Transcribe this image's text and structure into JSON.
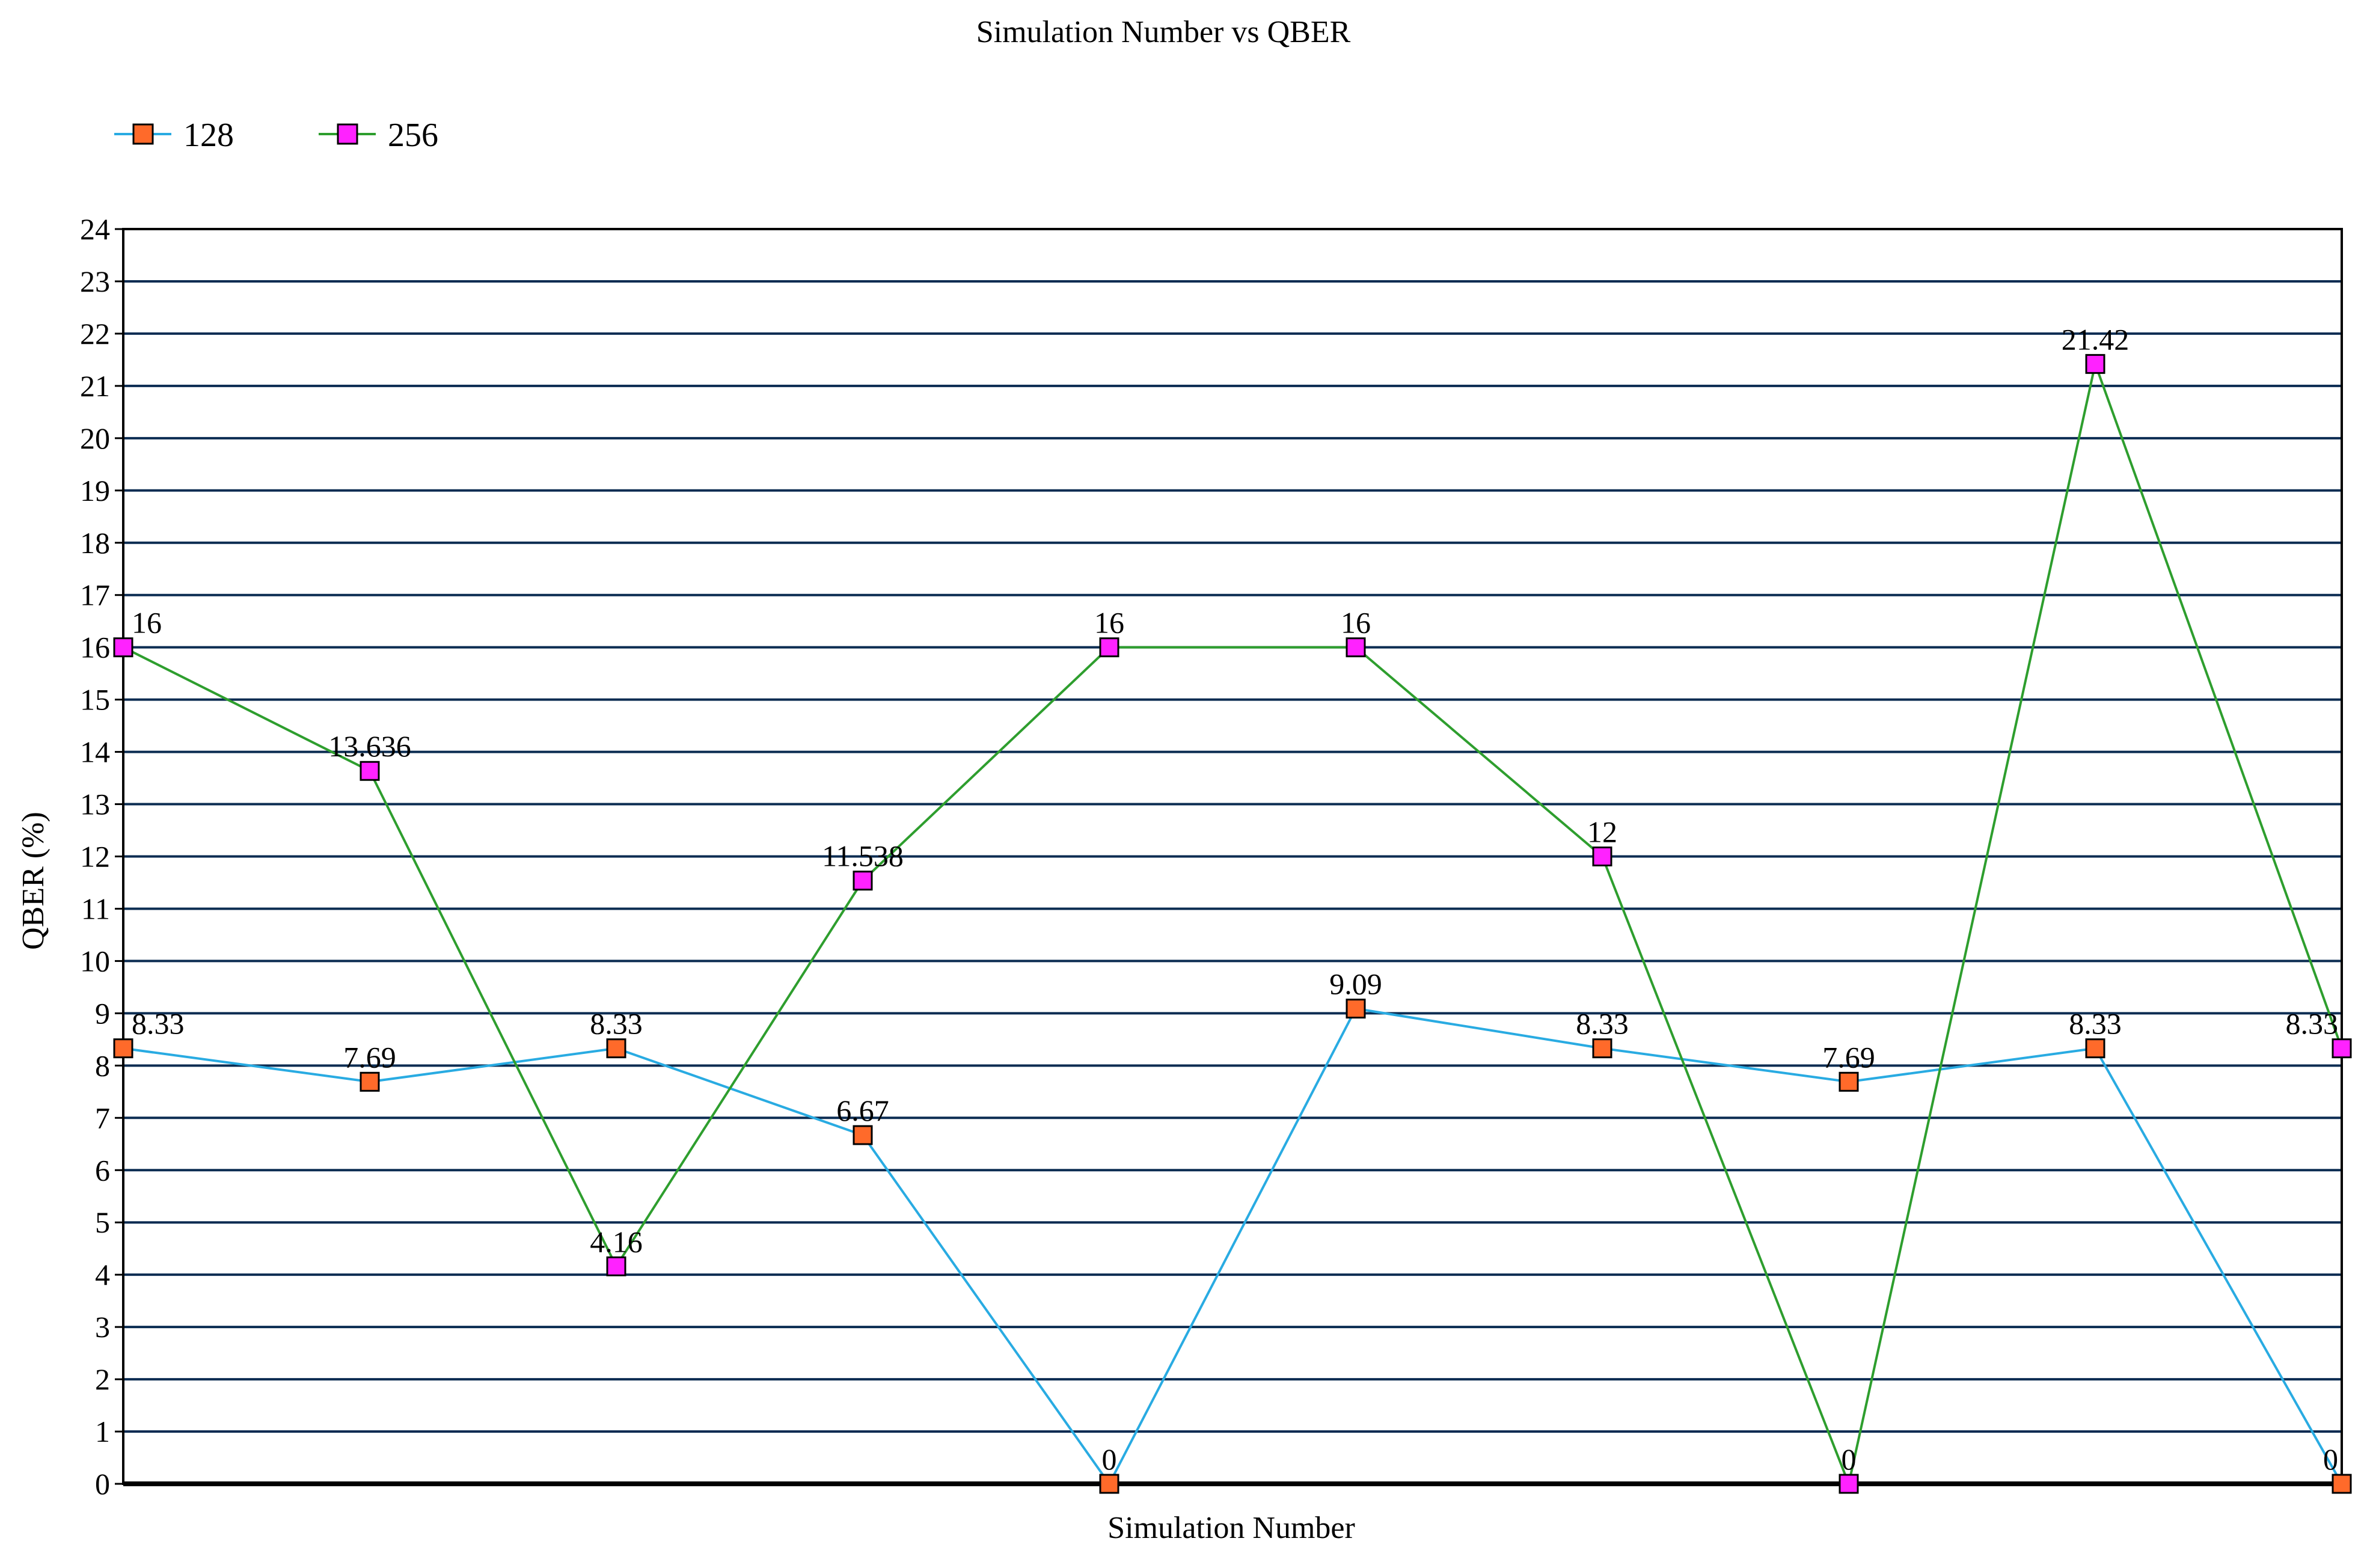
{
  "chart_data": {
    "type": "line",
    "title": "Simulation Number vs QBER",
    "xlabel": "Simulation Number",
    "ylabel": "QBER (%)",
    "ylim": [
      0,
      24
    ],
    "y_ticks": [
      "0",
      "1",
      "2",
      "3",
      "4",
      "5",
      "6",
      "7",
      "8",
      "9",
      "10",
      "11",
      "12",
      "13",
      "14",
      "15",
      "16",
      "17",
      "18",
      "19",
      "20",
      "21",
      "22",
      "23",
      "24"
    ],
    "grid": true,
    "legend_position": "top-left",
    "series": [
      {
        "name": "128",
        "line_color": "#29ABE2",
        "marker_color": "#FF6A2A",
        "values": [
          8.33,
          7.69,
          8.33,
          6.67,
          0,
          9.09,
          8.33,
          7.69,
          8.33,
          0
        ],
        "labels": [
          "8.33",
          "7.69",
          "8.33",
          "6.67",
          "0",
          "9.09",
          "8.33",
          "7.69",
          "8.33",
          "0"
        ]
      },
      {
        "name": "256",
        "line_color": "#2E9E2E",
        "marker_color": "#FF22FF",
        "values": [
          16,
          13.636,
          4.16,
          11.538,
          16,
          16,
          12,
          0,
          21.42,
          8.33
        ],
        "labels": [
          "16",
          "13.636",
          "4.16",
          "11.538",
          "16",
          "16",
          "12",
          "0",
          "21.42",
          "8.33"
        ]
      }
    ]
  }
}
